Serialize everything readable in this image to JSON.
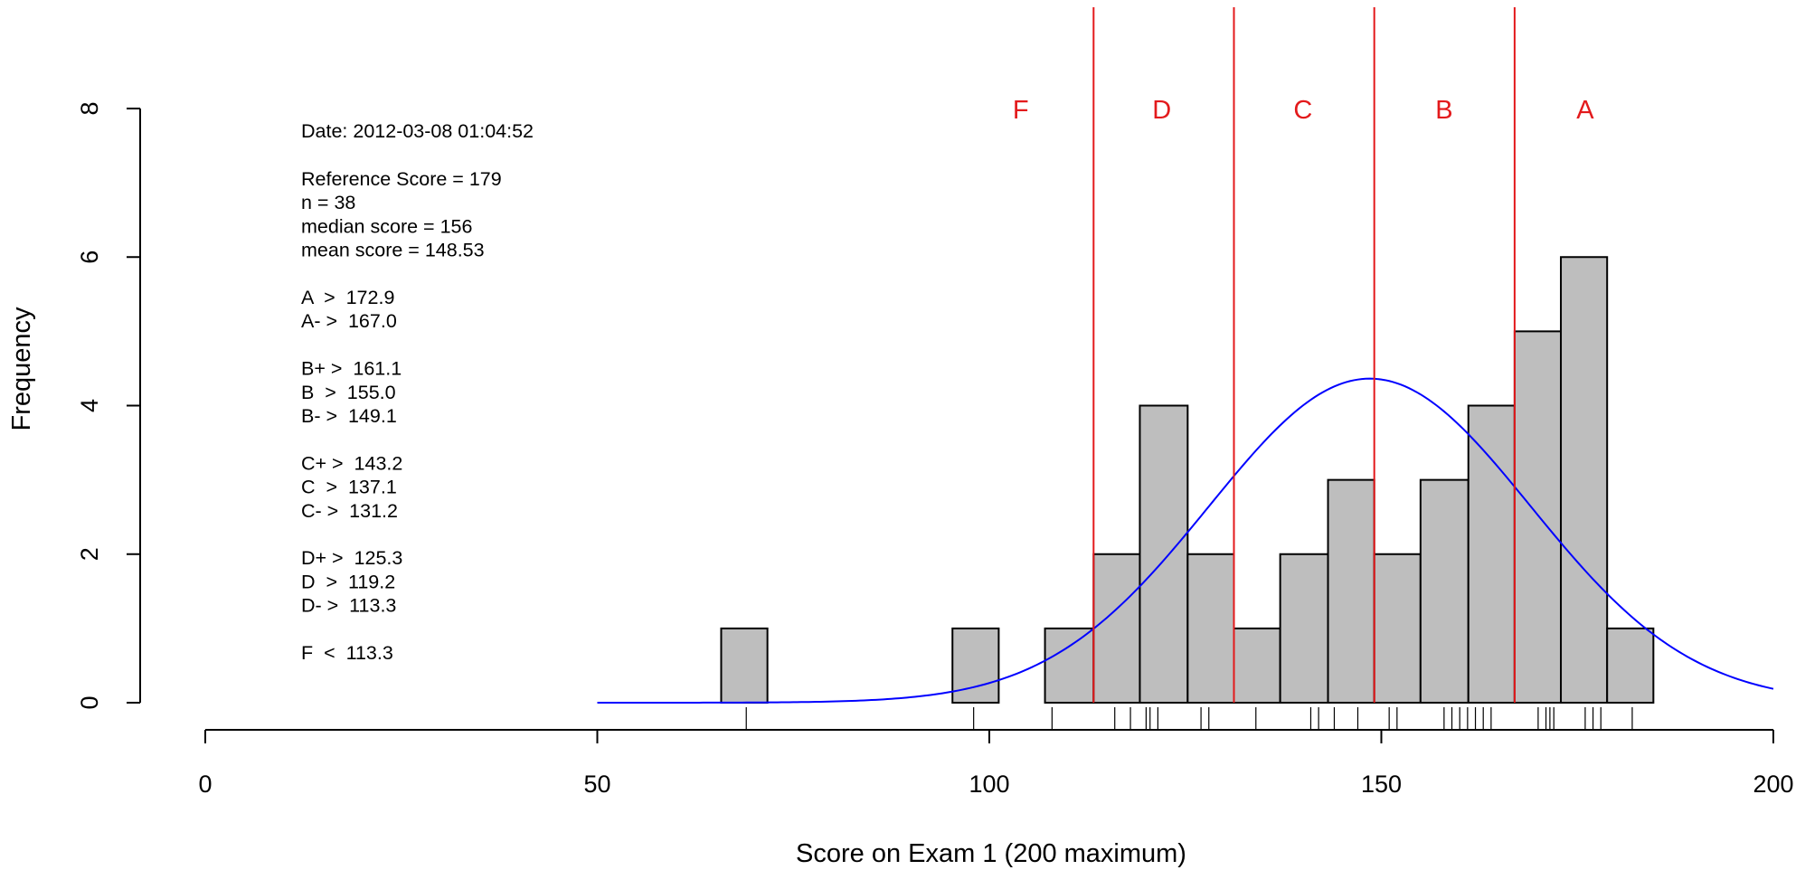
{
  "chart_data": {
    "type": "bar",
    "subtype": "histogram",
    "xlabel": "Score on Exam 1 (200 maximum)",
    "ylabel": "Frequency",
    "xlim": [
      0,
      200
    ],
    "ylim": [
      0,
      8
    ],
    "x_ticks": [
      "0",
      "50",
      "100",
      "150",
      "200"
    ],
    "y_ticks": [
      "0",
      "2",
      "4",
      "6",
      "8"
    ],
    "bin_width": 5.9,
    "bins": [
      {
        "start": 65.8,
        "end": 71.7,
        "count": 1
      },
      {
        "start": 71.7,
        "end": 77.6,
        "count": 0
      },
      {
        "start": 77.6,
        "end": 83.5,
        "count": 0
      },
      {
        "start": 83.5,
        "end": 89.4,
        "count": 0
      },
      {
        "start": 89.4,
        "end": 95.3,
        "count": 0
      },
      {
        "start": 95.3,
        "end": 101.2,
        "count": 1
      },
      {
        "start": 101.2,
        "end": 107.1,
        "count": 0
      },
      {
        "start": 107.1,
        "end": 113.3,
        "count": 1
      },
      {
        "start": 113.3,
        "end": 119.2,
        "count": 2
      },
      {
        "start": 119.2,
        "end": 125.3,
        "count": 4
      },
      {
        "start": 125.3,
        "end": 131.2,
        "count": 2
      },
      {
        "start": 131.2,
        "end": 137.1,
        "count": 1
      },
      {
        "start": 137.1,
        "end": 143.2,
        "count": 2
      },
      {
        "start": 143.2,
        "end": 149.1,
        "count": 3
      },
      {
        "start": 149.1,
        "end": 155.0,
        "count": 2
      },
      {
        "start": 155.0,
        "end": 161.1,
        "count": 3
      },
      {
        "start": 161.1,
        "end": 167.0,
        "count": 4
      },
      {
        "start": 167.0,
        "end": 172.9,
        "count": 5
      },
      {
        "start": 172.9,
        "end": 178.8,
        "count": 6
      },
      {
        "start": 178.8,
        "end": 184.7,
        "count": 1
      }
    ],
    "rug": [
      69,
      98,
      108,
      116,
      118,
      120,
      120.5,
      121.5,
      127,
      128,
      134,
      141,
      142,
      144,
      147,
      151,
      152,
      158,
      159,
      160,
      161,
      162,
      163,
      164,
      170,
      171,
      171.5,
      172,
      176,
      177,
      178,
      182
    ],
    "normal_curve": {
      "mean": 148.53,
      "sd": 20.5,
      "n": 38,
      "bin_width": 5.9,
      "x_range": [
        50,
        200
      ],
      "color": "#0000ff"
    },
    "cutoff_lines": {
      "values": [
        113.3,
        131.2,
        149.1,
        167.0
      ],
      "color": "#e31a1c"
    },
    "grade_labels": [
      {
        "label": "F",
        "x": 104
      },
      {
        "label": "D",
        "x": 122
      },
      {
        "label": "C",
        "x": 140
      },
      {
        "label": "B",
        "x": 158
      },
      {
        "label": "A",
        "x": 176
      }
    ],
    "bar_fill": "#bebebe",
    "annotation": {
      "date": "Date:  2012-03-08 01:04:52",
      "lines": [
        "Reference Score = 179",
        "n = 38",
        "median score = 156",
        "mean score = 148.53",
        "",
        "A  >  172.9",
        "A- >  167.0",
        "",
        "B+ >  161.1",
        "B  >  155.0",
        "B- >  149.1",
        "",
        "C+ >  143.2",
        "C  >  137.1",
        "C- >  131.2",
        "",
        "D+ >  125.3",
        "D  >  119.2",
        "D- >  113.3",
        "",
        "F  <  113.3"
      ]
    }
  }
}
